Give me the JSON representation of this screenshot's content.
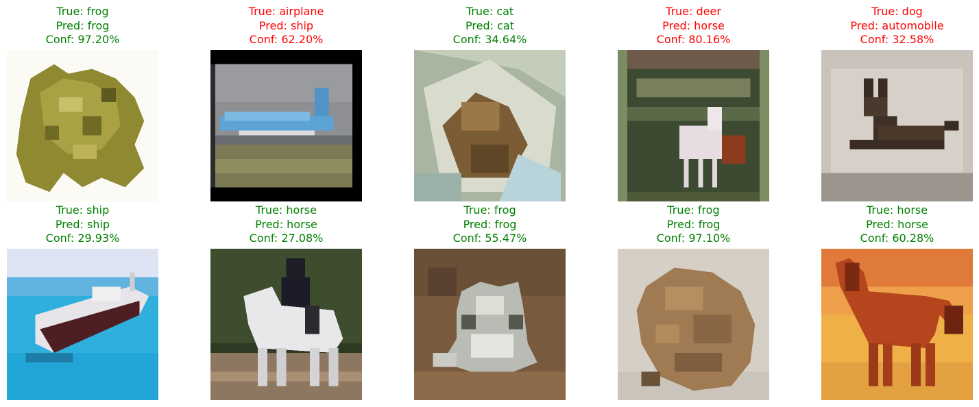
{
  "colors": {
    "correct": "#008000",
    "incorrect": "#ff0000"
  },
  "samples": [
    {
      "true_line": "True: frog",
      "pred_line": "Pred: frog",
      "conf_line": "Conf: 97.20%",
      "correct": true,
      "image": "frog on white background"
    },
    {
      "true_line": "True: airplane",
      "pred_line": "Pred: ship",
      "conf_line": "Conf: 62.20%",
      "correct": false,
      "image": "airliner on runway"
    },
    {
      "true_line": "True: cat",
      "pred_line": "Pred: cat",
      "conf_line": "Conf: 34.64%",
      "correct": true,
      "image": "cat in box"
    },
    {
      "true_line": "True: deer",
      "pred_line": "Pred: horse",
      "conf_line": "Conf: 80.16%",
      "correct": false,
      "image": "white deer in field"
    },
    {
      "true_line": "True: dog",
      "pred_line": "Pred: automobile",
      "conf_line": "Conf: 32.58%",
      "correct": false,
      "image": "dark dog lying down"
    },
    {
      "true_line": "True: ship",
      "pred_line": "Pred: ship",
      "conf_line": "Conf: 29.93%",
      "correct": true,
      "image": "boat on blue water"
    },
    {
      "true_line": "True: horse",
      "pred_line": "Pred: horse",
      "conf_line": "Conf: 27.08%",
      "correct": true,
      "image": "white horse with rider"
    },
    {
      "true_line": "True: frog",
      "pred_line": "Pred: frog",
      "conf_line": "Conf: 55.47%",
      "correct": true,
      "image": "pale frog on brown ground"
    },
    {
      "true_line": "True: frog",
      "pred_line": "Pred: frog",
      "conf_line": "Conf: 97.10%",
      "correct": true,
      "image": "brown toad on sand"
    },
    {
      "true_line": "True: horse",
      "pred_line": "Pred: horse",
      "conf_line": "Conf: 60.28%",
      "correct": true,
      "image": "chestnut horse at sunset"
    }
  ]
}
